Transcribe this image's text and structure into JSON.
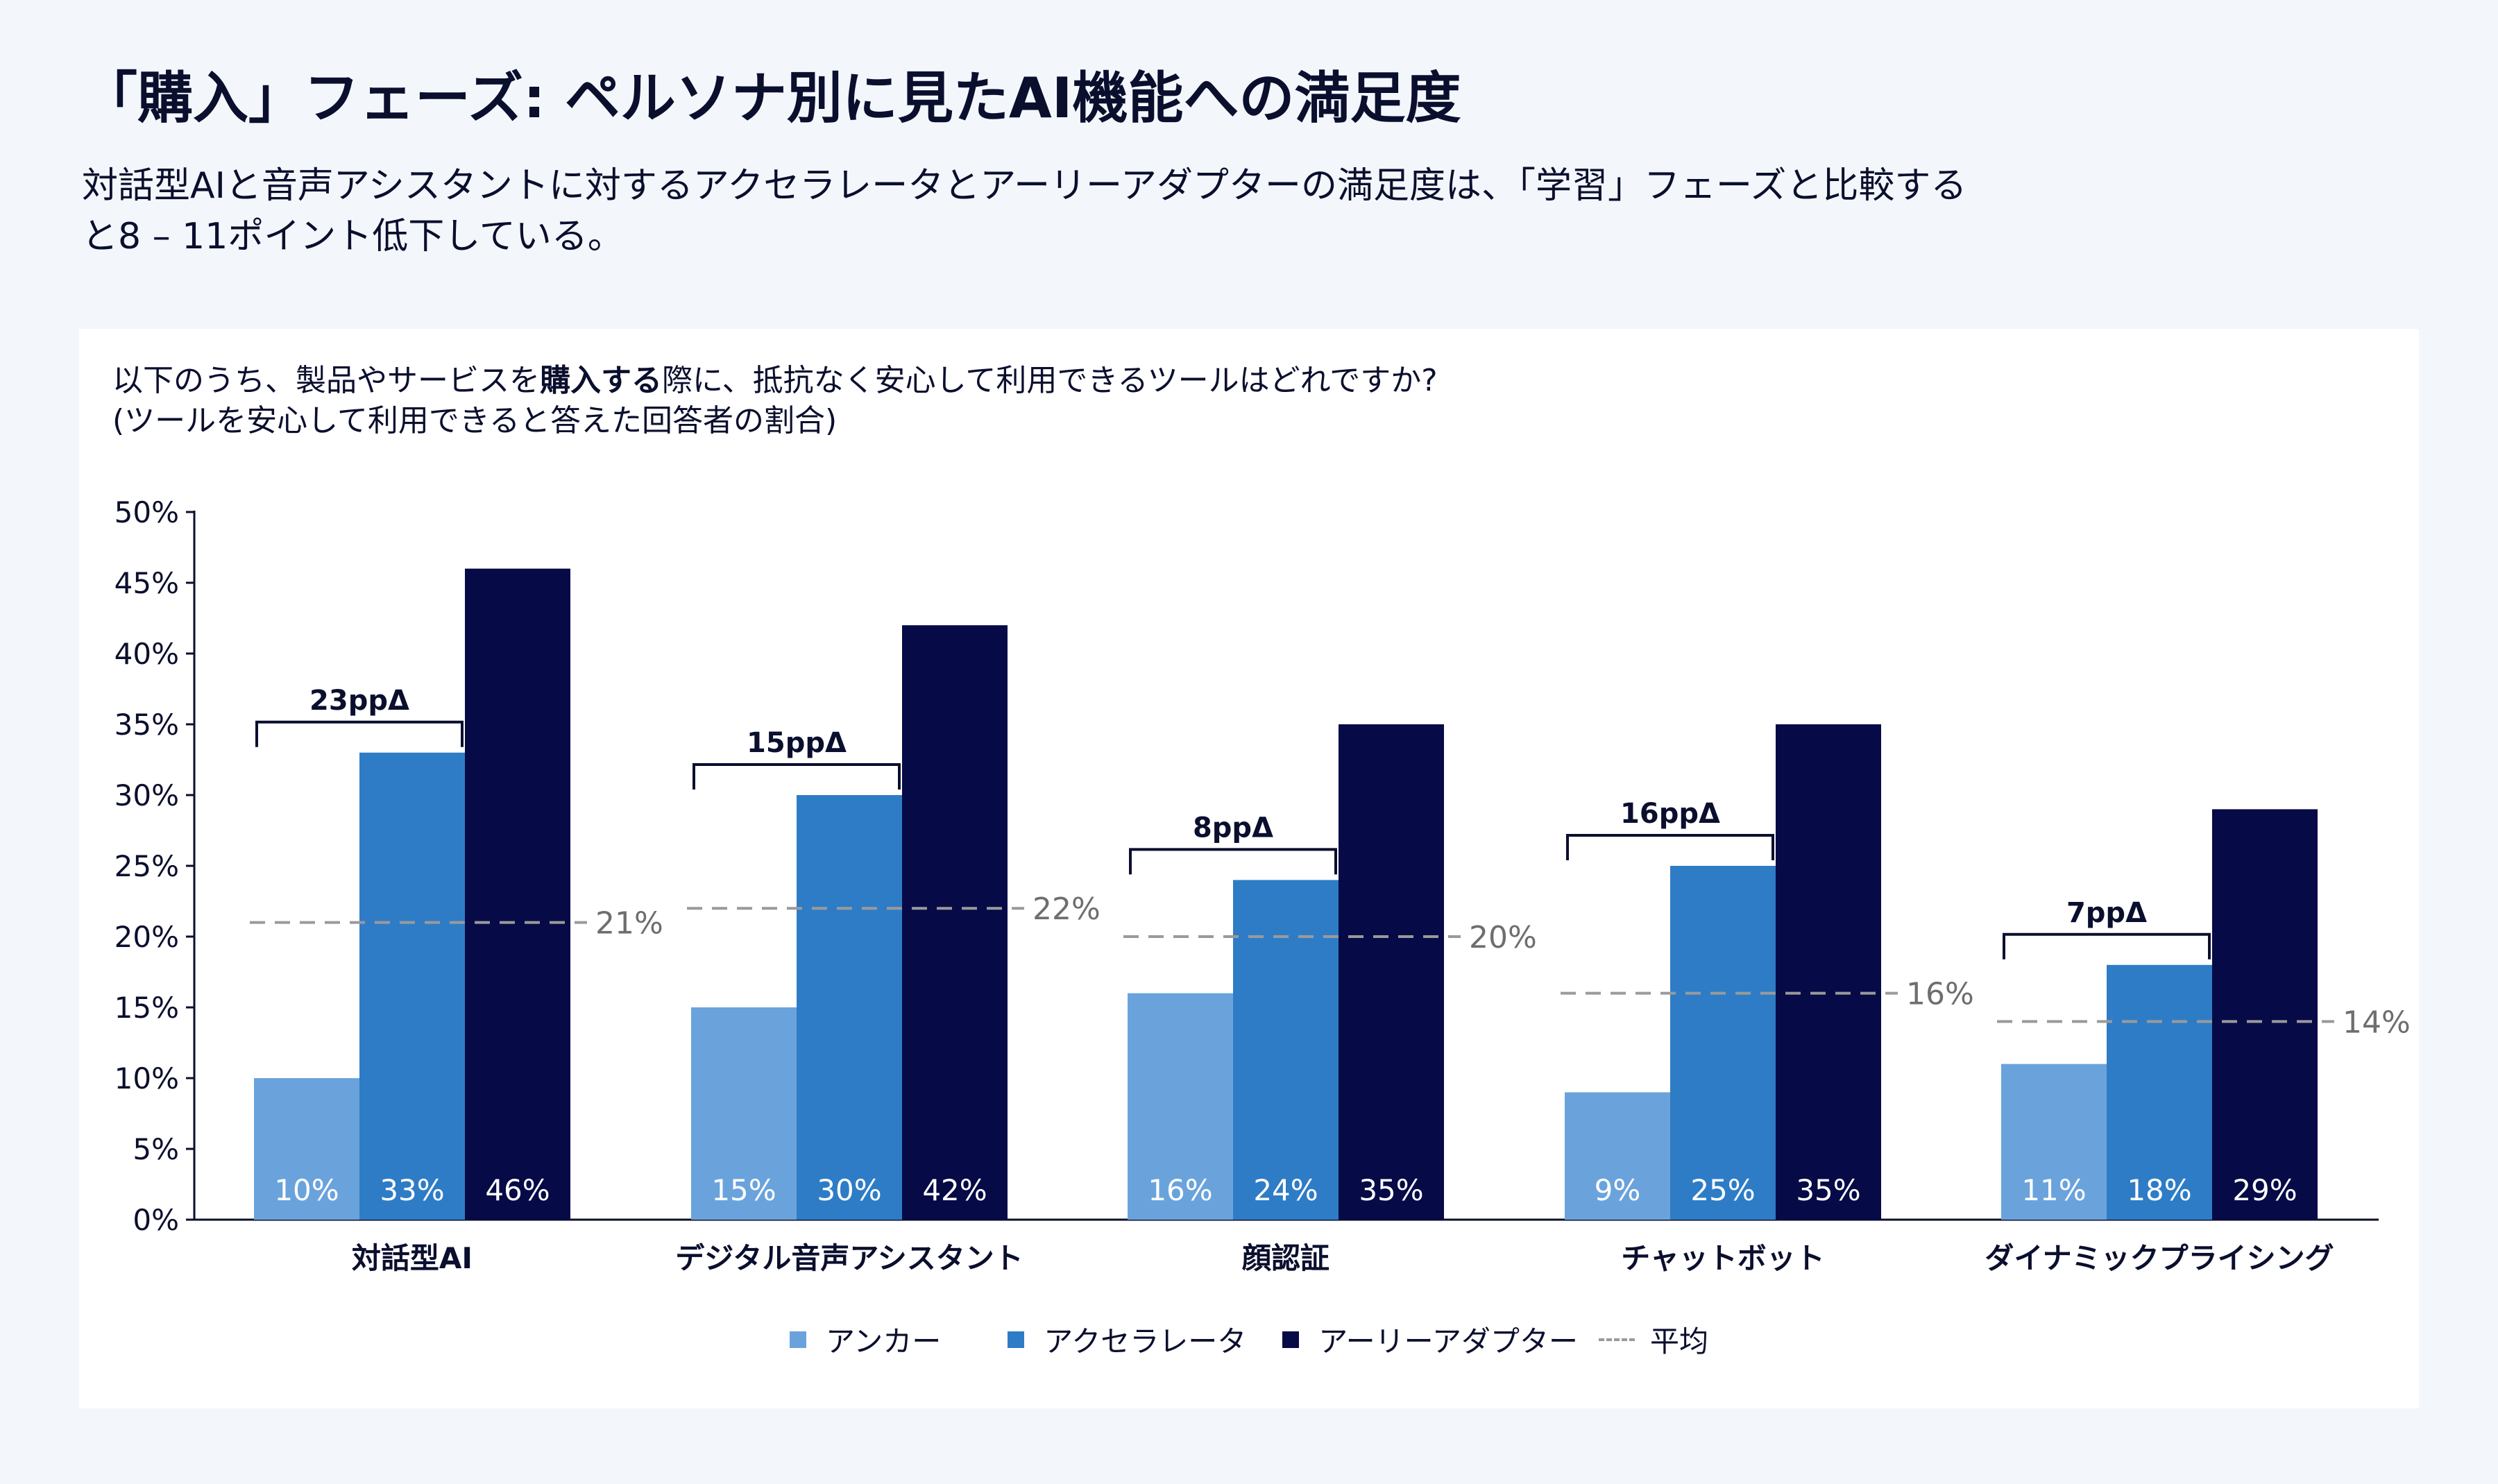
{
  "title": "「購入」フェーズ: ペルソナ別に見たAI機能への満足度",
  "subtitle": "対話型AIと音声アシスタントに対するアクセラレータとアーリーアダプターの満足度は、「学習」フェーズと比較すると8 – 11ポイント低下している。",
  "question": {
    "part1": "以下のうち、製品やサービスを",
    "part_bold": "購入する",
    "part2": "際に、抵抗なく安心して利用できるツールはどれですか?",
    "line2": "(ツールを安心して利用できると答えた回答者の割合)"
  },
  "colors": {
    "anchor": "#6aa3dc",
    "accelerator": "#2e7cc6",
    "early_adopter": "#060a46",
    "average": "#9a9a9a",
    "bracket": "#0b0f2e"
  },
  "legend": {
    "anchor": "アンカー",
    "accelerator": "アクセラレータ",
    "early_adopter": "アーリーアダプター",
    "average": "平均"
  },
  "chart_data": {
    "type": "bar",
    "categories": [
      "対話型AI",
      "デジタル音声アシスタント",
      "顔認証",
      "チャットボット",
      "ダイナミックプライシング"
    ],
    "series": [
      {
        "name": "アンカー",
        "values": [
          10,
          15,
          16,
          9,
          11
        ],
        "labels": [
          "10%",
          "15%",
          "16%",
          "9%",
          "11%"
        ]
      },
      {
        "name": "アクセラレータ",
        "values": [
          33,
          30,
          24,
          25,
          18
        ],
        "labels": [
          "33%",
          "30%",
          "24%",
          "25%",
          "18%"
        ]
      },
      {
        "name": "アーリーアダプター",
        "values": [
          46,
          42,
          35,
          35,
          29
        ],
        "labels": [
          "46%",
          "42%",
          "35%",
          "35%",
          "29%"
        ]
      }
    ],
    "average": {
      "name": "平均",
      "values": [
        21,
        22,
        20,
        16,
        14
      ],
      "labels": [
        "21%",
        "22%",
        "20%",
        "16%",
        "14%"
      ]
    },
    "deltas": [
      "23ppΔ",
      "15ppΔ",
      "8ppΔ",
      "16ppΔ",
      "7ppΔ"
    ],
    "ylim": [
      0,
      50
    ],
    "yticks": [
      0,
      5,
      10,
      15,
      20,
      25,
      30,
      35,
      40,
      45,
      50
    ],
    "ytick_labels": [
      "0%",
      "5%",
      "10%",
      "15%",
      "20%",
      "25%",
      "30%",
      "35%",
      "40%",
      "45%",
      "50%"
    ],
    "grid": false,
    "legend_position": "bottom-center"
  }
}
